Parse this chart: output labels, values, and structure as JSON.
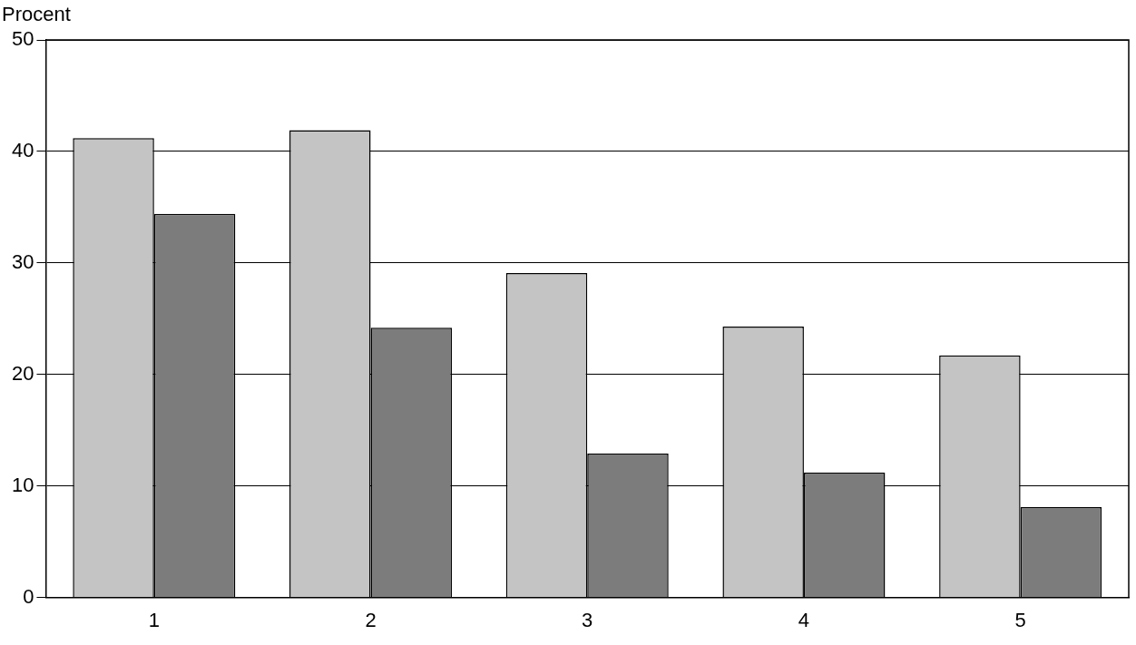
{
  "chart_data": {
    "type": "bar",
    "ylabel": "Procent",
    "categories": [
      "1",
      "2",
      "3",
      "4",
      "5"
    ],
    "series": [
      {
        "color": "#c4c4c4",
        "values": [
          41.2,
          41.9,
          29.1,
          24.3,
          21.7
        ]
      },
      {
        "color": "#7c7c7c",
        "values": [
          34.4,
          24.2,
          12.9,
          11.2,
          8.1
        ]
      }
    ],
    "ylim": [
      0,
      50
    ],
    "yticks": [
      0,
      10,
      20,
      30,
      40,
      50
    ],
    "grid": "y",
    "legend": false
  }
}
